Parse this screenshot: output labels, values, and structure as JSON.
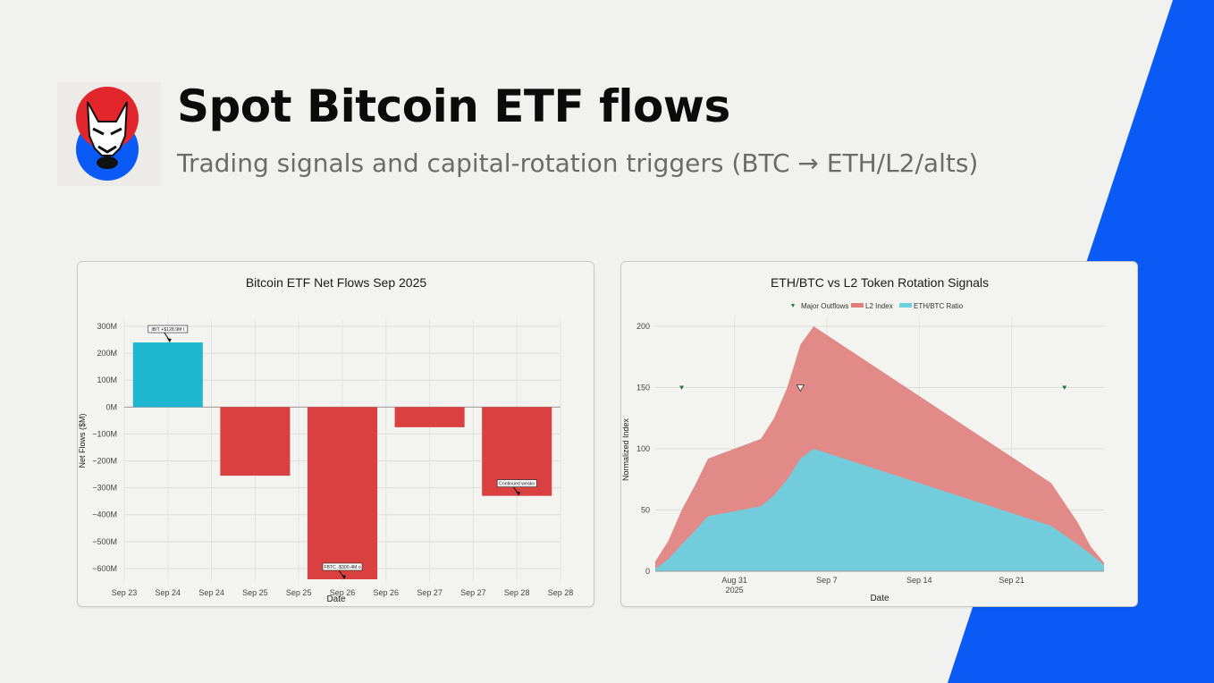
{
  "header": {
    "title": "Spot Bitcoin ETF flows",
    "subtitle": "Trading signals and capital-rotation triggers (BTC → ETH/L2/alts)"
  },
  "colors": {
    "background": "#f1f1ef",
    "accent_blue": "#0a5af5",
    "logo_red": "#e3262b",
    "logo_blue": "#0a5af5",
    "inflow": "#1fb6cf",
    "outflow": "#d9403f",
    "l2_index": "#e07e7c",
    "eth_btc": "#6dd0e0",
    "marker": "#1f7a4a"
  },
  "chart_data": [
    {
      "type": "bar",
      "title": "Bitcoin ETF Net Flows Sep 2025",
      "xlabel": "Date",
      "ylabel": "Net Flows ($M)",
      "ylim": [
        -650,
        300
      ],
      "yticks": [
        300,
        200,
        100,
        0,
        -100,
        -200,
        -300,
        -400,
        -500,
        -600
      ],
      "ytick_labels": [
        "300M",
        "200M",
        "100M",
        "0M",
        "−100M",
        "−200M",
        "−300M",
        "−400M",
        "−500M",
        "−600M"
      ],
      "xtick_labels": [
        "Sep 23",
        "Sep 24",
        "Sep 24",
        "Sep 25",
        "Sep 25",
        "Sep 26",
        "Sep 26",
        "Sep 27",
        "Sep 27",
        "Sep 28",
        "Sep 28"
      ],
      "categories": [
        "Sep 24",
        "Sep 25",
        "Sep 26",
        "Sep 27",
        "Sep 28"
      ],
      "values": [
        240,
        -255,
        -640,
        -75,
        -330
      ],
      "grid": true,
      "annotations": [
        {
          "text": "IBIT +$128.9M I",
          "category": "Sep 24"
        },
        {
          "text": "FBTC -$300.4M o",
          "category": "Sep 26"
        },
        {
          "text": "Continued weakn",
          "category": "Sep 28"
        }
      ]
    },
    {
      "type": "area",
      "title": "ETH/BTC vs L2 Token Rotation Signals",
      "xlabel": "Date",
      "ylabel": "Normalized Index",
      "ylim": [
        0,
        200
      ],
      "yticks": [
        0,
        50,
        100,
        150,
        200
      ],
      "xlim": [
        "2025-08-25",
        "2025-09-28"
      ],
      "xticks": [
        {
          "date": "2025-08-31",
          "label": "Aug 31",
          "sublabel": "2025"
        },
        {
          "date": "2025-09-07",
          "label": "Sep 7",
          "sublabel": ""
        },
        {
          "date": "2025-09-14",
          "label": "Sep 14",
          "sublabel": ""
        },
        {
          "date": "2025-09-21",
          "label": "Sep 21",
          "sublabel": ""
        }
      ],
      "grid": true,
      "legend": {
        "position": "top",
        "entries": [
          "Major Outflows",
          "L2 Index",
          "ETH/BTC Ratio"
        ]
      },
      "series": [
        {
          "name": "L2 Index",
          "x": [
            "2025-08-25",
            "2025-08-26",
            "2025-08-27",
            "2025-08-28",
            "2025-08-29",
            "2025-09-02",
            "2025-09-03",
            "2025-09-04",
            "2025-09-05",
            "2025-09-06",
            "2025-09-24",
            "2025-09-26",
            "2025-09-27",
            "2025-09-28"
          ],
          "values": [
            8,
            25,
            50,
            70,
            92,
            108,
            125,
            150,
            185,
            200,
            72,
            40,
            20,
            7
          ]
        },
        {
          "name": "ETH/BTC Ratio",
          "x": [
            "2025-08-25",
            "2025-08-26",
            "2025-08-27",
            "2025-08-28",
            "2025-08-29",
            "2025-09-02",
            "2025-09-03",
            "2025-09-04",
            "2025-09-05",
            "2025-09-06",
            "2025-09-24",
            "2025-09-26",
            "2025-09-27",
            "2025-09-28"
          ],
          "values": [
            2,
            10,
            22,
            33,
            45,
            53,
            62,
            75,
            92,
            100,
            37,
            22,
            14,
            5
          ]
        },
        {
          "name": "Major Outflows",
          "x": [
            "2025-08-27",
            "2025-09-05",
            "2025-09-25"
          ],
          "values": [
            150,
            150,
            150
          ]
        }
      ]
    }
  ]
}
